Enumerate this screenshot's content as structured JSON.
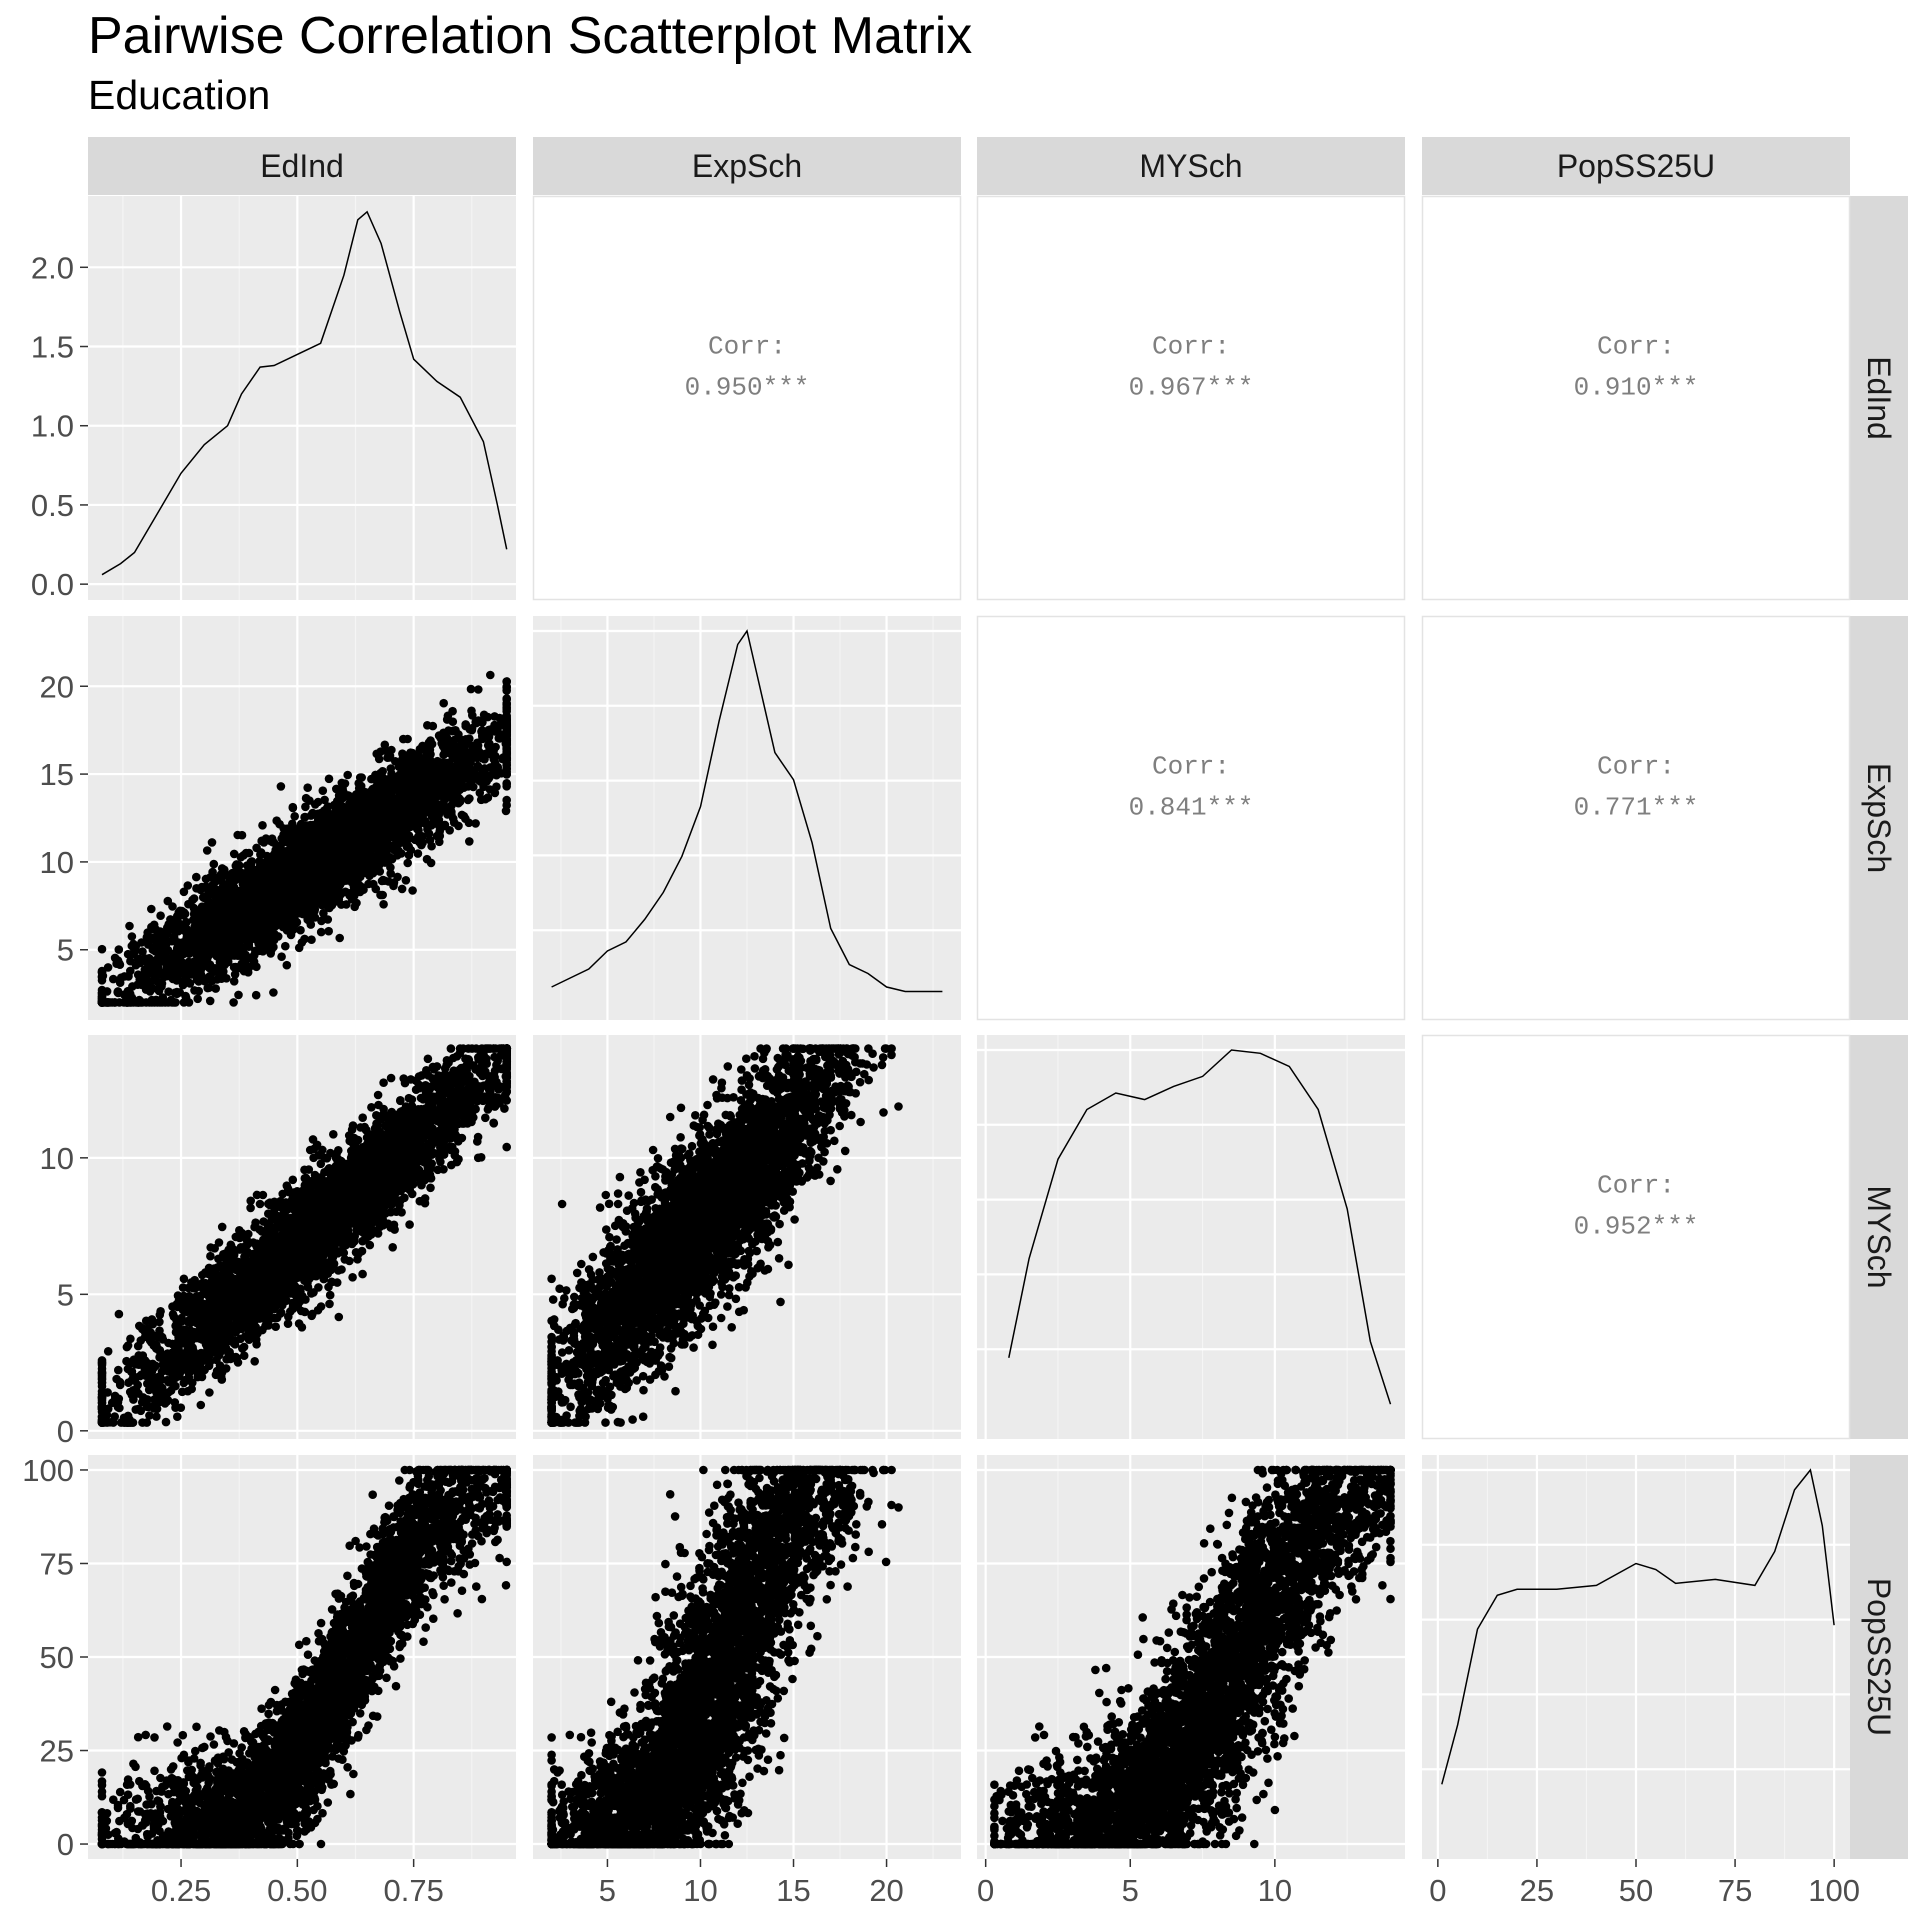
{
  "title": "Pairwise Correlation Scatterplot Matrix",
  "subtitle": "Education",
  "chart_data": {
    "type": "scatter",
    "variables": [
      "EdInd",
      "ExpSch",
      "MYSch",
      "PopSS25U"
    ],
    "axes": {
      "EdInd": {
        "range": [
          0.05,
          0.97
        ],
        "ticks": [
          0.25,
          0.5,
          0.75
        ],
        "tick_labels": [
          "0.25",
          "0.50",
          "0.75"
        ]
      },
      "ExpSch": {
        "range": [
          1.0,
          24.0
        ],
        "ticks": [
          5,
          10,
          15,
          20
        ],
        "tick_labels": [
          "5",
          "10",
          "15",
          "20"
        ]
      },
      "MYSch": {
        "range": [
          -0.3,
          14.5
        ],
        "ticks": [
          0,
          5,
          10
        ],
        "tick_labels": [
          "0",
          "5",
          "10"
        ]
      },
      "PopSS25U": {
        "range": [
          -4,
          104
        ],
        "ticks": [
          0,
          25,
          50,
          75,
          100
        ],
        "tick_labels": [
          "0",
          "25",
          "50",
          "75",
          "100"
        ]
      }
    },
    "density_axis": {
      "range": [
        -0.1,
        2.45
      ],
      "ticks": [
        0,
        0.5,
        1,
        1.5,
        2
      ],
      "tick_labels": [
        "0.0",
        "0.5",
        "1.0",
        "1.5",
        "2.0"
      ]
    },
    "correlations": [
      {
        "row": "EdInd",
        "col": "ExpSch",
        "label": "Corr:",
        "value": "0.950***"
      },
      {
        "row": "EdInd",
        "col": "MYSch",
        "label": "Corr:",
        "value": "0.967***"
      },
      {
        "row": "EdInd",
        "col": "PopSS25U",
        "label": "Corr:",
        "value": "0.910***"
      },
      {
        "row": "ExpSch",
        "col": "MYSch",
        "label": "Corr:",
        "value": "0.841***"
      },
      {
        "row": "ExpSch",
        "col": "PopSS25U",
        "label": "Corr:",
        "value": "0.771***"
      },
      {
        "row": "MYSch",
        "col": "PopSS25U",
        "label": "Corr:",
        "value": "0.952***"
      }
    ],
    "densities": {
      "EdInd": [
        [
          0.08,
          0.06
        ],
        [
          0.12,
          0.13
        ],
        [
          0.15,
          0.2
        ],
        [
          0.2,
          0.45
        ],
        [
          0.25,
          0.7
        ],
        [
          0.3,
          0.88
        ],
        [
          0.35,
          1.0
        ],
        [
          0.38,
          1.2
        ],
        [
          0.42,
          1.37
        ],
        [
          0.45,
          1.38
        ],
        [
          0.5,
          1.45
        ],
        [
          0.55,
          1.52
        ],
        [
          0.6,
          1.95
        ],
        [
          0.63,
          2.3
        ],
        [
          0.65,
          2.35
        ],
        [
          0.68,
          2.15
        ],
        [
          0.72,
          1.72
        ],
        [
          0.75,
          1.42
        ],
        [
          0.8,
          1.28
        ],
        [
          0.85,
          1.18
        ],
        [
          0.9,
          0.9
        ],
        [
          0.93,
          0.5
        ],
        [
          0.95,
          0.22
        ]
      ],
      "ExpSch": [
        [
          2,
          0.04
        ],
        [
          3,
          0.06
        ],
        [
          4,
          0.08
        ],
        [
          5,
          0.12
        ],
        [
          6,
          0.14
        ],
        [
          7,
          0.19
        ],
        [
          8,
          0.25
        ],
        [
          9,
          0.33
        ],
        [
          10,
          0.44
        ],
        [
          11,
          0.63
        ],
        [
          12,
          0.8
        ],
        [
          12.5,
          0.83
        ],
        [
          13,
          0.74
        ],
        [
          14,
          0.56
        ],
        [
          15,
          0.5
        ],
        [
          16,
          0.36
        ],
        [
          17,
          0.17
        ],
        [
          18,
          0.09
        ],
        [
          19,
          0.07
        ],
        [
          20,
          0.04
        ],
        [
          21,
          0.03
        ],
        [
          23,
          0.03
        ]
      ],
      "MYSch": [
        [
          0.8,
          0.02
        ],
        [
          1.5,
          0.05
        ],
        [
          2.5,
          0.08
        ],
        [
          3.5,
          0.095
        ],
        [
          4.5,
          0.1
        ],
        [
          5.5,
          0.098
        ],
        [
          6.5,
          0.102
        ],
        [
          7.5,
          0.105
        ],
        [
          8.5,
          0.113
        ],
        [
          9.5,
          0.112
        ],
        [
          10.5,
          0.108
        ],
        [
          11.5,
          0.095
        ],
        [
          12.5,
          0.065
        ],
        [
          13.3,
          0.025
        ],
        [
          14,
          0.006
        ]
      ],
      "PopSS25U": [
        [
          1,
          0.003
        ],
        [
          5,
          0.006
        ],
        [
          10,
          0.0108
        ],
        [
          15,
          0.0125
        ],
        [
          20,
          0.0128
        ],
        [
          30,
          0.0128
        ],
        [
          40,
          0.013
        ],
        [
          50,
          0.0141
        ],
        [
          55,
          0.0138
        ],
        [
          60,
          0.0131
        ],
        [
          70,
          0.0133
        ],
        [
          80,
          0.013
        ],
        [
          85,
          0.0147
        ],
        [
          90,
          0.0178
        ],
        [
          94,
          0.0188
        ],
        [
          97,
          0.016
        ],
        [
          100,
          0.011
        ]
      ]
    },
    "scatter_points_approx": 4000
  }
}
